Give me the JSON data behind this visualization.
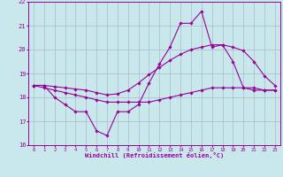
{
  "xlabel": "Windchill (Refroidissement éolien,°C)",
  "bg_color": "#c8e8ec",
  "line_color": "#990099",
  "grid_color": "#aabbc8",
  "x_hours": [
    0,
    1,
    2,
    3,
    4,
    5,
    6,
    7,
    8,
    9,
    10,
    11,
    12,
    13,
    14,
    15,
    16,
    17,
    18,
    19,
    20,
    21,
    22,
    23
  ],
  "windchill": [
    18.5,
    18.5,
    18.0,
    17.7,
    17.4,
    17.4,
    16.6,
    16.4,
    17.4,
    17.4,
    17.7,
    18.6,
    19.4,
    20.1,
    21.1,
    21.1,
    21.6,
    20.1,
    20.2,
    19.5,
    18.4,
    18.4,
    18.3,
    18.3
  ],
  "smooth_low": [
    18.5,
    18.4,
    18.3,
    18.2,
    18.1,
    18.0,
    17.9,
    17.8,
    17.8,
    17.8,
    17.8,
    17.8,
    17.9,
    18.0,
    18.1,
    18.2,
    18.3,
    18.4,
    18.4,
    18.4,
    18.4,
    18.3,
    18.3,
    18.3
  ],
  "smooth_high": [
    18.5,
    18.5,
    18.45,
    18.4,
    18.35,
    18.3,
    18.2,
    18.1,
    18.15,
    18.3,
    18.6,
    18.95,
    19.25,
    19.55,
    19.8,
    20.0,
    20.1,
    20.2,
    20.2,
    20.1,
    19.95,
    19.5,
    18.9,
    18.5
  ],
  "ylim_bottom": 16,
  "ylim_top": 22,
  "yticks": [
    16,
    17,
    18,
    19,
    20,
    21,
    22
  ],
  "xticks": [
    0,
    1,
    2,
    3,
    4,
    5,
    6,
    7,
    8,
    9,
    10,
    11,
    12,
    13,
    14,
    15,
    16,
    17,
    18,
    19,
    20,
    21,
    22,
    23
  ]
}
